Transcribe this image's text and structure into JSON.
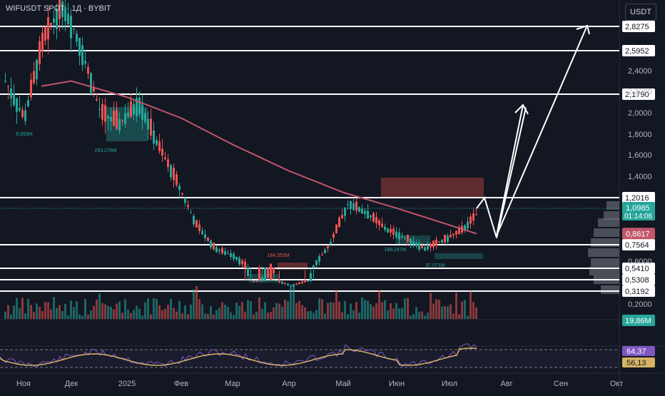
{
  "header": {
    "symbol": "WIFUSDT SPOT · 1Д · BYBIT",
    "currency": "USDT"
  },
  "colors": {
    "background": "#131722",
    "up": "#26a69a",
    "down": "#ef5350",
    "ma": "#c2566a",
    "rsi": "#7e57c2",
    "rsi_ma": "#d6b463",
    "hline": "#ffffff"
  },
  "chart_data": {
    "type": "candlestick",
    "price_scale_ticks": [
      "2,4000",
      "2,2000",
      "2,0000",
      "1,8000",
      "1,6000",
      "1,4000",
      "0,6000",
      "0,2000"
    ],
    "time_ticks": [
      "Ноя",
      "Дек",
      "2025",
      "Фев",
      "Мар",
      "Апр",
      "Май",
      "Июн",
      "Июл",
      "Авг",
      "Сен",
      "Окт"
    ],
    "horizontal_levels": [
      {
        "label": "2,8275",
        "value": 2.8275
      },
      {
        "label": "2,5952",
        "value": 2.5952
      },
      {
        "label": "2,1790",
        "value": 2.179
      },
      {
        "label": "1,2016",
        "value": 1.2016
      },
      {
        "label": "0,7564",
        "value": 0.7564
      },
      {
        "label": "0,5410",
        "value": 0.541
      },
      {
        "label": "0,5308",
        "value": 0.5308
      },
      {
        "label": "0,3192",
        "value": 0.3192
      }
    ],
    "current_price": {
      "label": "1,0985",
      "value": 1.0985,
      "countdown": "01:14:06"
    },
    "ma_price": {
      "label": "0,8617",
      "value": 0.8617
    },
    "volume_badge": "19,86M",
    "rsi": {
      "value": "64,37",
      "ma": "56,13"
    },
    "annotations": [
      "8,893M",
      "293,276M",
      "184,352M",
      "188,247M",
      "37,071M"
    ],
    "price_path": [
      {
        "month": "Ноя",
        "value": 2.3
      },
      {
        "month": "Ноя",
        "value": 1.95
      },
      {
        "month": "Ноя",
        "value": 2.7
      },
      {
        "month": "Дек",
        "value": 3.1
      },
      {
        "month": "Дек",
        "value": 2.6
      },
      {
        "month": "Дек",
        "value": 2.0
      },
      {
        "month": "2025",
        "value": 1.9
      },
      {
        "month": "2025",
        "value": 2.1
      },
      {
        "month": "2025",
        "value": 1.7
      },
      {
        "month": "Фев",
        "value": 1.35
      },
      {
        "month": "Фев",
        "value": 0.95
      },
      {
        "month": "Фев",
        "value": 0.72
      },
      {
        "month": "Мар",
        "value": 0.65
      },
      {
        "month": "Мар",
        "value": 0.5
      },
      {
        "month": "Апр",
        "value": 0.55
      },
      {
        "month": "Апр",
        "value": 0.42
      },
      {
        "month": "Апр",
        "value": 0.52
      },
      {
        "month": "Май",
        "value": 0.75
      },
      {
        "month": "Май",
        "value": 1.15
      },
      {
        "month": "Май",
        "value": 1.05
      },
      {
        "month": "Июн",
        "value": 0.9
      },
      {
        "month": "Июн",
        "value": 0.82
      },
      {
        "month": "Июн",
        "value": 0.72
      },
      {
        "month": "Июл",
        "value": 0.8
      },
      {
        "month": "Июл",
        "value": 0.9
      },
      {
        "month": "Июл",
        "value": 1.0985
      }
    ],
    "ma_path": [
      {
        "month": "Ноя",
        "value": 2.25
      },
      {
        "month": "Дек",
        "value": 2.3
      },
      {
        "month": "2025",
        "value": 2.15
      },
      {
        "month": "Фев",
        "value": 1.95
      },
      {
        "month": "Мар",
        "value": 1.7
      },
      {
        "month": "Апр",
        "value": 1.45
      },
      {
        "month": "Май",
        "value": 1.25
      },
      {
        "month": "Июн",
        "value": 1.1
      },
      {
        "month": "Июл",
        "value": 0.86
      }
    ],
    "projection": [
      {
        "value": 1.0985
      },
      {
        "value": 1.2
      },
      {
        "value": 0.82
      },
      {
        "value": 2.05
      },
      {
        "value": 1.0
      },
      {
        "value": 0.82
      },
      {
        "value": 2.8275
      }
    ]
  }
}
